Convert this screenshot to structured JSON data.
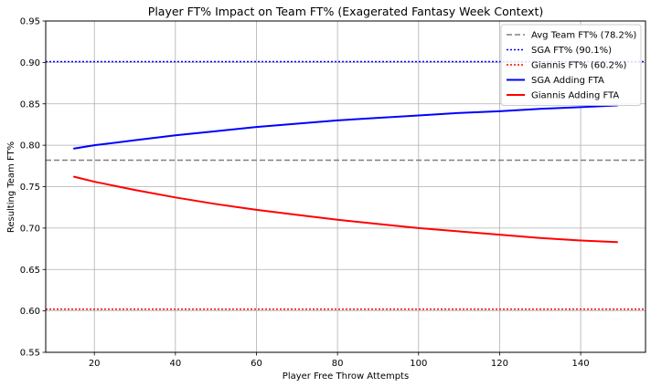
{
  "chart_data": {
    "type": "line",
    "title": "Player FT% Impact on Team FT% (Exagerated Fantasy Week Context)",
    "xlabel": "Player Free Throw Attempts",
    "ylabel": "Resulting Team FT%",
    "xlim": [
      8,
      156
    ],
    "ylim": [
      0.55,
      0.95
    ],
    "xticks": [
      20,
      40,
      60,
      80,
      100,
      120,
      140
    ],
    "yticks": [
      0.55,
      0.6,
      0.65,
      0.7,
      0.75,
      0.8,
      0.85,
      0.9,
      0.95
    ],
    "grid": true,
    "legend_position": "top-right",
    "reference_lines": [
      {
        "name": "Avg Team FT% (78.2%)",
        "y": 0.782,
        "color": "#808080",
        "style": "dashed"
      },
      {
        "name": "SGA FT% (90.1%)",
        "y": 0.901,
        "color": "#0000ff",
        "style": "dotted"
      },
      {
        "name": "Giannis FT% (60.2%)",
        "y": 0.602,
        "color": "#ff0000",
        "style": "dotted"
      }
    ],
    "series": [
      {
        "name": "SGA Adding FTA",
        "color": "#0000ff",
        "x": [
          15,
          20,
          30,
          40,
          50,
          60,
          70,
          80,
          90,
          100,
          110,
          120,
          130,
          140,
          149
        ],
        "y": [
          0.796,
          0.8,
          0.806,
          0.812,
          0.817,
          0.822,
          0.826,
          0.83,
          0.833,
          0.836,
          0.839,
          0.841,
          0.844,
          0.846,
          0.848
        ]
      },
      {
        "name": "Giannis Adding FTA",
        "color": "#ff0000",
        "x": [
          15,
          20,
          30,
          40,
          50,
          60,
          70,
          80,
          90,
          100,
          110,
          120,
          130,
          140,
          149
        ],
        "y": [
          0.762,
          0.756,
          0.746,
          0.737,
          0.729,
          0.722,
          0.716,
          0.71,
          0.705,
          0.7,
          0.696,
          0.692,
          0.688,
          0.685,
          0.683
        ]
      }
    ]
  }
}
